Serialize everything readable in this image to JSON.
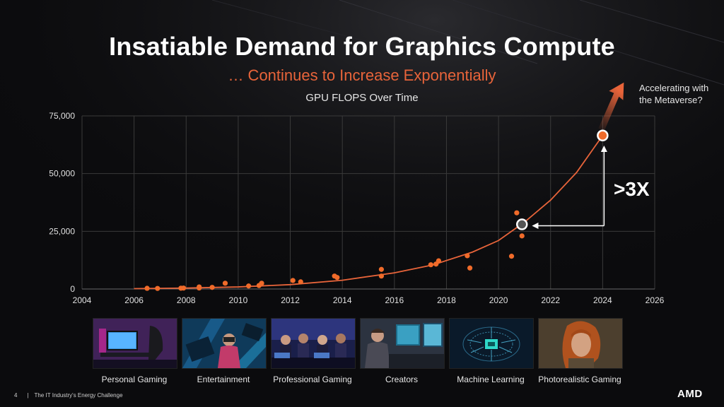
{
  "slide": {
    "title": "Insatiable Demand for Graphics Compute",
    "subtitle": "… Continues to Increase Exponentially",
    "callout": "Accelerating with the Metaverse?",
    "multiplier_label": ">3X",
    "page_number": "4",
    "footer_text": "The IT Industry's Energy Challenge",
    "footer_separator": "|",
    "logo_text": "AMD"
  },
  "colors": {
    "accent": "#e8643a",
    "marker": "#f06b2a",
    "highlight": "#555555",
    "grid": "#3a3a3a",
    "background": "#0b0b0d"
  },
  "tiles": [
    {
      "label": "Personal Gaming",
      "icon": "gaming-desk-image"
    },
    {
      "label": "Entertainment",
      "icon": "vr-entertainment-image"
    },
    {
      "label": "Professional Gaming",
      "icon": "esports-image"
    },
    {
      "label": "Creators",
      "icon": "creator-workstation-image"
    },
    {
      "label": "Machine  Learning",
      "icon": "ai-brain-chip-image"
    },
    {
      "label": "Photorealistic Gaming",
      "icon": "game-character-image"
    }
  ],
  "chart_data": {
    "type": "scatter",
    "title": "GPU FLOPS Over Time",
    "xlabel": "",
    "ylabel": "",
    "xlim": [
      2004,
      2026
    ],
    "ylim": [
      0,
      75000
    ],
    "x_ticks": [
      2004,
      2006,
      2008,
      2010,
      2012,
      2014,
      2016,
      2018,
      2020,
      2022,
      2024,
      2026
    ],
    "y_ticks": [
      0,
      25000,
      50000,
      75000
    ],
    "y_tick_labels": [
      "0",
      "25,000",
      "50,000",
      "75,000"
    ],
    "grid": true,
    "legend": "none",
    "series": [
      {
        "points": [
          {
            "x": 2006.5,
            "y": 300
          },
          {
            "x": 2006.9,
            "y": 250
          },
          {
            "x": 2007.8,
            "y": 350
          },
          {
            "x": 2007.9,
            "y": 400
          },
          {
            "x": 2008.5,
            "y": 900
          },
          {
            "x": 2008.5,
            "y": 450
          },
          {
            "x": 2009.0,
            "y": 700
          },
          {
            "x": 2009.5,
            "y": 2500
          },
          {
            "x": 2010.4,
            "y": 1300
          },
          {
            "x": 2010.8,
            "y": 1500
          },
          {
            "x": 2010.9,
            "y": 2500
          },
          {
            "x": 2012.1,
            "y": 3700
          },
          {
            "x": 2012.4,
            "y": 3100
          },
          {
            "x": 2013.7,
            "y": 5600
          },
          {
            "x": 2013.8,
            "y": 5000
          },
          {
            "x": 2015.5,
            "y": 8500
          },
          {
            "x": 2015.5,
            "y": 5600
          },
          {
            "x": 2017.4,
            "y": 10500
          },
          {
            "x": 2017.6,
            "y": 10800
          },
          {
            "x": 2017.7,
            "y": 12200
          },
          {
            "x": 2018.8,
            "y": 14400
          },
          {
            "x": 2018.9,
            "y": 9100
          },
          {
            "x": 2020.5,
            "y": 14200
          },
          {
            "x": 2020.7,
            "y": 33000
          },
          {
            "x": 2020.9,
            "y": 23000
          },
          {
            "x": 2024.0,
            "y": 66500
          }
        ]
      }
    ],
    "highlight_point": {
      "x": 2020.9,
      "y": 28000
    },
    "target_point": {
      "x": 2024.0,
      "y": 66500
    },
    "trend_curve": [
      {
        "x": 2006.0,
        "y": 150
      },
      {
        "x": 2008.0,
        "y": 400
      },
      {
        "x": 2010.0,
        "y": 900
      },
      {
        "x": 2012.0,
        "y": 1900
      },
      {
        "x": 2014.0,
        "y": 3800
      },
      {
        "x": 2016.0,
        "y": 7000
      },
      {
        "x": 2017.5,
        "y": 10500
      },
      {
        "x": 2019.0,
        "y": 16000
      },
      {
        "x": 2020.0,
        "y": 21000
      },
      {
        "x": 2021.0,
        "y": 29000
      },
      {
        "x": 2022.0,
        "y": 38500
      },
      {
        "x": 2023.0,
        "y": 50500
      },
      {
        "x": 2024.0,
        "y": 66500
      }
    ]
  }
}
